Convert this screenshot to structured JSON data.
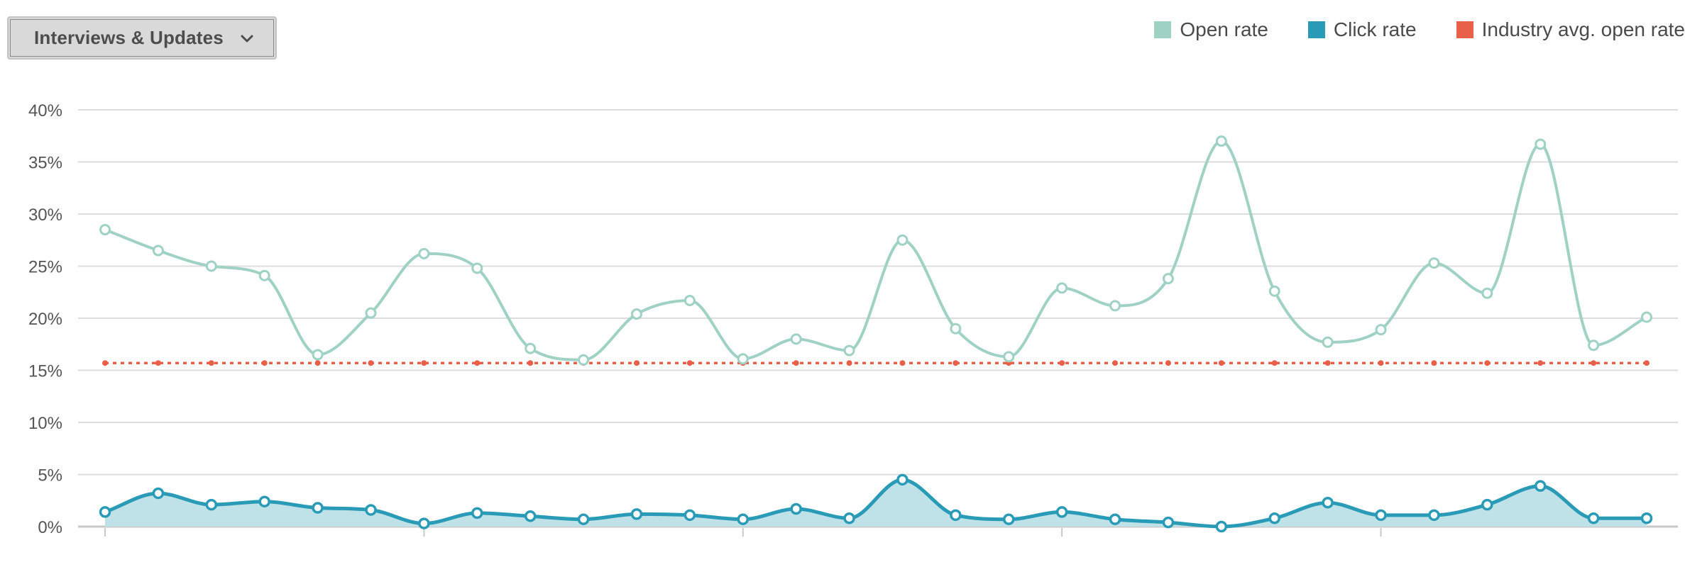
{
  "filter": {
    "label": "Interviews & Updates",
    "icon": "chevron-down-icon"
  },
  "legend": [
    {
      "label": "Open rate",
      "color": "#9fd2c4"
    },
    {
      "label": "Click rate",
      "color": "#2a9bb7"
    },
    {
      "label": "Industry avg. open rate",
      "color": "#e8604a"
    }
  ],
  "chart_data": {
    "type": "line",
    "title": "",
    "xlabel": "",
    "ylabel": "",
    "ylim": [
      0,
      40
    ],
    "y_ticks": [
      "0%",
      "5%",
      "10%",
      "15%",
      "20%",
      "25%",
      "30%",
      "35%",
      "40%"
    ],
    "grid": true,
    "legend_position": "top-right",
    "x": [
      1,
      2,
      3,
      4,
      5,
      6,
      7,
      8,
      9,
      10,
      11,
      12,
      13,
      14,
      15,
      16,
      17,
      18,
      19,
      20,
      21,
      22,
      23,
      24,
      25,
      26,
      27,
      28,
      29,
      30
    ],
    "series": [
      {
        "name": "Open rate",
        "style": "smooth-line",
        "color": "#9fd2c4",
        "values": [
          28.5,
          26.5,
          25.0,
          24.1,
          16.5,
          20.5,
          26.2,
          24.8,
          17.1,
          16.0,
          20.4,
          21.7,
          16.1,
          18.0,
          16.9,
          27.5,
          19.0,
          16.3,
          22.9,
          21.2,
          23.8,
          37.0,
          22.6,
          17.7,
          18.9,
          25.3,
          22.4,
          36.7,
          17.4,
          20.1
        ]
      },
      {
        "name": "Click rate",
        "style": "smooth-area",
        "color": "#2a9bb7",
        "values": [
          1.4,
          3.2,
          2.1,
          2.4,
          1.8,
          1.6,
          0.3,
          1.3,
          1.0,
          0.7,
          1.2,
          1.1,
          0.7,
          1.7,
          0.8,
          4.5,
          1.1,
          0.7,
          1.4,
          0.7,
          0.4,
          0.0,
          0.8,
          2.3,
          1.1,
          1.1,
          2.1,
          3.9,
          0.8,
          0.8
        ]
      },
      {
        "name": "Industry avg. open rate",
        "style": "dotted-line",
        "color": "#e8604a",
        "values": [
          15.7,
          15.7,
          15.7,
          15.7,
          15.7,
          15.7,
          15.7,
          15.7,
          15.7,
          15.7,
          15.7,
          15.7,
          15.7,
          15.7,
          15.7,
          15.7,
          15.7,
          15.7,
          15.7,
          15.7,
          15.7,
          15.7,
          15.7,
          15.7,
          15.7,
          15.7,
          15.7,
          15.7,
          15.7,
          15.7
        ]
      }
    ]
  }
}
